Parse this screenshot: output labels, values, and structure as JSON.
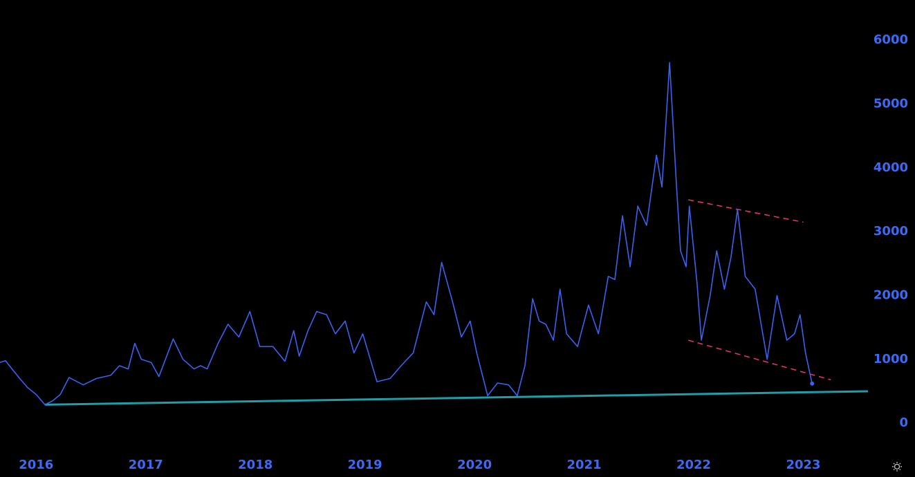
{
  "chart_data": {
    "type": "line",
    "x": [
      2015.67,
      2015.72,
      2015.78,
      2015.85,
      2015.92,
      2016.0,
      2016.08,
      2016.15,
      2016.22,
      2016.3,
      2016.43,
      2016.55,
      2016.68,
      2016.76,
      2016.84,
      2016.9,
      2016.96,
      2017.05,
      2017.12,
      2017.25,
      2017.34,
      2017.44,
      2017.5,
      2017.56,
      2017.66,
      2017.75,
      2017.85,
      2017.95,
      2018.04,
      2018.16,
      2018.27,
      2018.35,
      2018.4,
      2018.48,
      2018.56,
      2018.65,
      2018.73,
      2018.82,
      2018.9,
      2018.98,
      2019.11,
      2019.23,
      2019.33,
      2019.44,
      2019.56,
      2019.63,
      2019.7,
      2019.8,
      2019.88,
      2019.96,
      2020.02,
      2020.12,
      2020.21,
      2020.31,
      2020.39,
      2020.46,
      2020.53,
      2020.59,
      2020.65,
      2020.72,
      2020.78,
      2020.84,
      2020.94,
      2021.04,
      2021.13,
      2021.22,
      2021.28,
      2021.35,
      2021.42,
      2021.49,
      2021.57,
      2021.66,
      2021.71,
      2021.78,
      2021.84,
      2021.88,
      2021.93,
      2021.96,
      2022.03,
      2022.07,
      2022.15,
      2022.21,
      2022.28,
      2022.34,
      2022.4,
      2022.47,
      2022.56,
      2022.67,
      2022.76,
      2022.85,
      2022.92,
      2022.97,
      2023.02,
      2023.08
    ],
    "series": [
      {
        "color": "#3a62f0",
        "values": [
          950,
          980,
          850,
          700,
          560,
          450,
          290,
          350,
          450,
          715,
          600,
          700,
          750,
          900,
          850,
          1250,
          1000,
          950,
          730,
          1320,
          1000,
          850,
          900,
          850,
          1250,
          1550,
          1350,
          1750,
          1200,
          1200,
          970,
          1450,
          1050,
          1450,
          1750,
          1700,
          1400,
          1600,
          1100,
          1400,
          650,
          700,
          900,
          1100,
          1900,
          1700,
          2520,
          1900,
          1350,
          1600,
          1100,
          430,
          630,
          600,
          430,
          900,
          1950,
          1600,
          1550,
          1300,
          2100,
          1400,
          1200,
          1850,
          1400,
          2300,
          2250,
          3250,
          2450,
          3400,
          3100,
          4200,
          3700,
          5650,
          3800,
          2700,
          2450,
          3400,
          2200,
          1300,
          2000,
          2700,
          2100,
          2600,
          3350,
          2300,
          2100,
          1000,
          2000,
          1300,
          1400,
          1700,
          1100,
          620
        ]
      }
    ],
    "marker_last": true,
    "trendlines": [
      {
        "color": "#1f9ea8",
        "dash": false,
        "x": [
          2016.08,
          2023.59
        ],
        "values": [
          290,
          500
        ]
      },
      {
        "color": "#e8336a",
        "dash": true,
        "x": [
          2021.95,
          2023.0
        ],
        "values": [
          3500,
          3150
        ]
      },
      {
        "color": "#e8336a",
        "dash": true,
        "x": [
          2021.95,
          2023.25
        ],
        "values": [
          1300,
          680
        ]
      }
    ],
    "xlim": [
      2015.67,
      2023.59
    ],
    "xticks": [
      2016,
      2017,
      2018,
      2019,
      2020,
      2021,
      2022,
      2023
    ],
    "ylim": [
      -410,
      6630
    ],
    "yticks": [
      0,
      1000,
      2000,
      3000,
      4000,
      5000,
      6000
    ],
    "tick_color": "#3d6af5",
    "grid": false
  }
}
